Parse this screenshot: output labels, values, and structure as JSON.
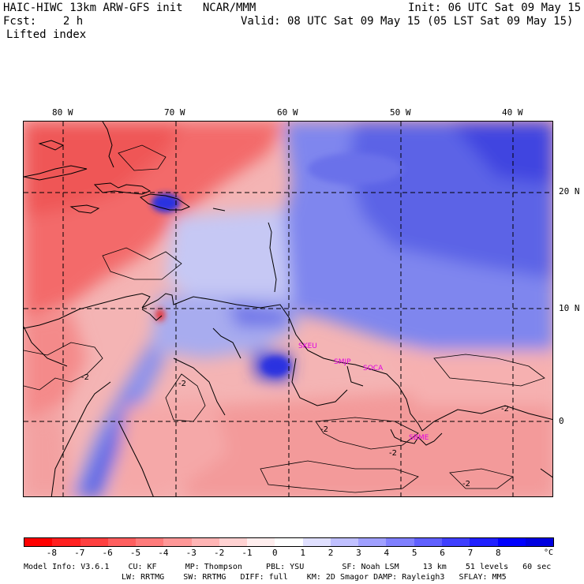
{
  "header": {
    "title": "HAIC-HIWC 13km ARW-GFS init   NCAR/MMM",
    "init": "Init: 06 UTC Sat 09 May 15",
    "fcst": "Fcst:    2 h",
    "valid": "Valid: 08 UTC Sat 09 May 15 (05 LST Sat 09 May 15)",
    "field": "Lifted index"
  },
  "map": {
    "lon_labels": [
      "80 W",
      "70 W",
      "60 W",
      "50 W",
      "40 W"
    ],
    "lat_labels": [
      "20 N",
      "10 N",
      "0"
    ],
    "contour_labels": [
      "-2",
      "-2",
      "-2",
      "-2",
      "-2",
      "-2"
    ],
    "region_labels": [
      "SKEU",
      "SMJP",
      "SOCA",
      "SBME"
    ]
  },
  "colorbar": {
    "labels": [
      "-8",
      "-7",
      "-6",
      "-5",
      "-4",
      "-3",
      "-2",
      "-1",
      "0",
      "1",
      "2",
      "3",
      "4",
      "5",
      "6",
      "7",
      "8"
    ],
    "unit": "°C",
    "colors": [
      "#ff0000",
      "#ff2020",
      "#ff4040",
      "#ff5f5f",
      "#ff7b7b",
      "#ff9898",
      "#ffb5b5",
      "#ffd2d2",
      "#ffeeee",
      "#ffffff",
      "#e0e0ff",
      "#c0c0ff",
      "#a0a0ff",
      "#8080ff",
      "#6060ff",
      "#4040ff",
      "#2020ff",
      "#0000ff",
      "#0000e0"
    ]
  },
  "footer": {
    "line1": "Model Info: V3.6.1    CU: KF      MP: Thompson     PBL: YSU        SF: Noah LSM     13 km    51 levels   60 sec",
    "line2": "LW: RRTMG    SW: RRTMG   DIFF: full    KM: 2D Smagor DAMP: Rayleigh3   SFLAY: MM5"
  }
}
